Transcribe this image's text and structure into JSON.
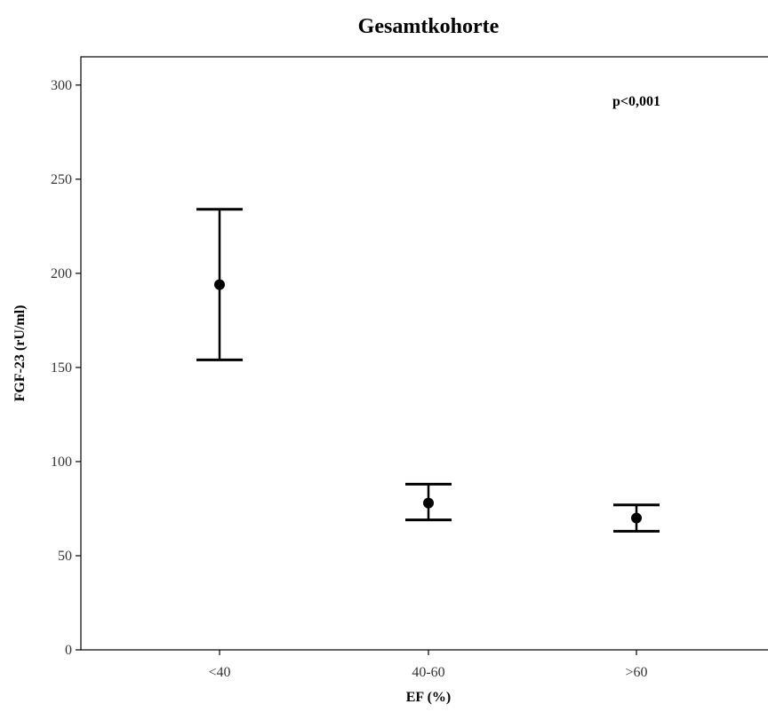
{
  "chart_data": {
    "type": "scatter",
    "title": "Gesamtkohorte",
    "xlabel": "EF (%)",
    "ylabel": "FGF-23 (rU/ml)",
    "ylim": [
      0,
      315
    ],
    "yticks": [
      0,
      50,
      100,
      150,
      200,
      250,
      300
    ],
    "grid": false,
    "annotation": "p<0,001",
    "categories": [
      "<40",
      "40-60",
      ">60"
    ],
    "series": [
      {
        "values": [
          194,
          78,
          70
        ],
        "error_low": [
          154,
          69,
          63
        ],
        "error_high": [
          234,
          88,
          77
        ]
      }
    ],
    "colors": {
      "marker": "#000000",
      "axis": "#000000"
    }
  }
}
